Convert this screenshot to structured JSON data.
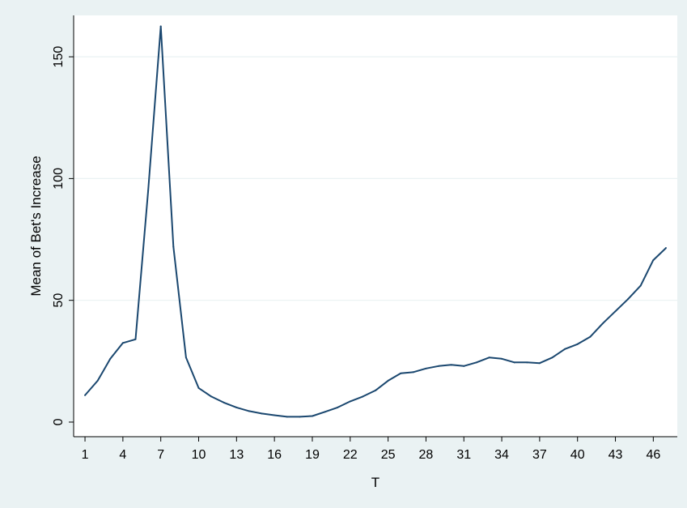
{
  "chart_data": {
    "type": "line",
    "title": "",
    "xlabel": "T",
    "ylabel": "Mean of Bet's Increase",
    "xlim": [
      0.1,
      47.9
    ],
    "ylim": [
      -6,
      167
    ],
    "xticks": [
      1,
      4,
      7,
      10,
      13,
      16,
      19,
      22,
      25,
      28,
      31,
      34,
      37,
      40,
      43,
      46
    ],
    "yticks": [
      0,
      50,
      100,
      150
    ],
    "grid": "horizontal",
    "legend": "none",
    "series": [
      {
        "color": "#1a476f",
        "x": [
          1,
          2,
          3,
          4,
          5,
          6,
          7,
          8,
          9,
          10,
          11,
          12,
          13,
          14,
          15,
          16,
          17,
          18,
          19,
          20,
          21,
          22,
          23,
          24,
          25,
          26,
          27,
          28,
          29,
          30,
          31,
          32,
          33,
          34,
          35,
          36,
          37,
          38,
          39,
          40,
          41,
          42,
          43,
          44,
          45,
          46,
          47
        ],
        "y": [
          11,
          17,
          26,
          32.5,
          34,
          95,
          162.5,
          72,
          26.5,
          14,
          10.5,
          8,
          6,
          4.5,
          3.5,
          2.8,
          2.2,
          2.2,
          2.5,
          4.2,
          6,
          8.5,
          10.5,
          13,
          17,
          20,
          20.5,
          22,
          23,
          23.5,
          23,
          24.5,
          26.5,
          26,
          24.5,
          24.5,
          24.2,
          26.5,
          30,
          32,
          35,
          40.5,
          45.5,
          50.5,
          56,
          66.5,
          71.5
        ]
      }
    ]
  }
}
